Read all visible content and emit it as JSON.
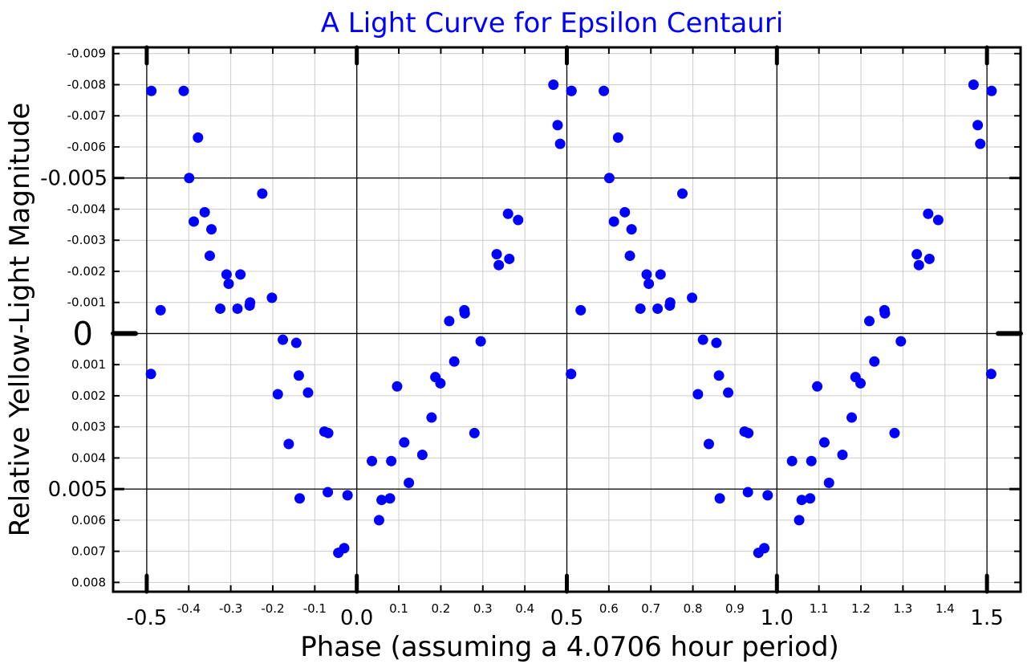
{
  "chart_data": {
    "type": "scatter",
    "title": "A Light Curve for Epsilon Centauri",
    "xlabel": "Phase (assuming a 4.0706 hour period)",
    "ylabel": "Relative Yellow-Light Magnitude",
    "xlim": [
      -0.58,
      1.58
    ],
    "ylim": [
      0.0083,
      -0.0092
    ],
    "y_inverted": true,
    "grid": true,
    "marker_color": "#0000ff",
    "title_color": "#0000ff",
    "x_ticks_minor": [
      {
        "v": -0.4,
        "label": "-0.4"
      },
      {
        "v": -0.3,
        "label": "-0.3"
      },
      {
        "v": -0.2,
        "label": "-0.2"
      },
      {
        "v": -0.1,
        "label": "-0.1"
      },
      {
        "v": 0.1,
        "label": "0.1"
      },
      {
        "v": 0.2,
        "label": "0.2"
      },
      {
        "v": 0.3,
        "label": "0.3"
      },
      {
        "v": 0.4,
        "label": "0.4"
      },
      {
        "v": 0.6,
        "label": "0.6"
      },
      {
        "v": 0.7,
        "label": "0.7"
      },
      {
        "v": 0.8,
        "label": "0.8"
      },
      {
        "v": 0.9,
        "label": "0.9"
      },
      {
        "v": 1.1,
        "label": "1.1"
      },
      {
        "v": 1.2,
        "label": "1.2"
      },
      {
        "v": 1.3,
        "label": "1.3"
      },
      {
        "v": 1.4,
        "label": "1.4"
      }
    ],
    "x_ticks_major": [
      {
        "v": -0.5,
        "label": "-0.5"
      },
      {
        "v": 0.0,
        "label": "0.0"
      },
      {
        "v": 0.5,
        "label": "0.5"
      },
      {
        "v": 1.0,
        "label": "1.0"
      },
      {
        "v": 1.5,
        "label": "1.5"
      }
    ],
    "y_ticks_minor": [
      {
        "v": -0.009,
        "label": "-0.009"
      },
      {
        "v": -0.008,
        "label": "-0.008"
      },
      {
        "v": -0.007,
        "label": "-0.007"
      },
      {
        "v": -0.006,
        "label": "-0.006"
      },
      {
        "v": -0.004,
        "label": "-0.004"
      },
      {
        "v": -0.003,
        "label": "-0.003"
      },
      {
        "v": -0.002,
        "label": "-0.002"
      },
      {
        "v": -0.001,
        "label": "-0.001"
      },
      {
        "v": 0.001,
        "label": "0.001"
      },
      {
        "v": 0.002,
        "label": "0.002"
      },
      {
        "v": 0.003,
        "label": "0.003"
      },
      {
        "v": 0.004,
        "label": "0.004"
      },
      {
        "v": 0.006,
        "label": "0.006"
      },
      {
        "v": 0.007,
        "label": "0.007"
      },
      {
        "v": 0.008,
        "label": "0.008"
      }
    ],
    "y_ticks_major": [
      {
        "v": -0.005,
        "label": "-0.005"
      },
      {
        "v": 0.005,
        "label": "0.005"
      }
    ],
    "y_tick_zero": {
      "v": 0,
      "label": "0"
    },
    "points": [
      [
        -0.49,
        0.0013
      ],
      [
        -0.489,
        -0.0078
      ],
      [
        -0.467,
        -0.00075
      ],
      [
        -0.412,
        -0.0078
      ],
      [
        -0.399,
        -0.005
      ],
      [
        -0.388,
        -0.0036
      ],
      [
        -0.378,
        -0.0063
      ],
      [
        -0.362,
        -0.0039
      ],
      [
        -0.346,
        -0.00335
      ],
      [
        -0.35,
        -0.0025
      ],
      [
        -0.325,
        -0.0008
      ],
      [
        -0.31,
        -0.0019
      ],
      [
        -0.305,
        -0.0016
      ],
      [
        -0.284,
        -0.0008
      ],
      [
        -0.277,
        -0.0019
      ],
      [
        -0.255,
        -0.0009
      ],
      [
        -0.254,
        -0.001
      ],
      [
        -0.225,
        -0.0045
      ],
      [
        -0.202,
        -0.00115
      ],
      [
        -0.188,
        0.00195
      ],
      [
        -0.176,
        0.0002
      ],
      [
        -0.162,
        0.00355
      ],
      [
        -0.144,
        0.0003
      ],
      [
        -0.138,
        0.00135
      ],
      [
        -0.136,
        0.0053
      ],
      [
        -0.116,
        0.0019
      ],
      [
        -0.077,
        0.00315
      ],
      [
        -0.068,
        0.0032
      ],
      [
        -0.069,
        0.0051
      ],
      [
        -0.044,
        0.00705
      ],
      [
        -0.03,
        0.0069
      ],
      [
        -0.022,
        0.0052
      ],
      [
        0.036,
        0.0041
      ],
      [
        0.053,
        0.006
      ],
      [
        0.059,
        0.00535
      ],
      [
        0.079,
        0.0053
      ],
      [
        0.082,
        0.0041
      ],
      [
        0.096,
        0.0017
      ],
      [
        0.113,
        0.0035
      ],
      [
        0.124,
        0.0048
      ],
      [
        0.156,
        0.0039
      ],
      [
        0.178,
        0.0027
      ],
      [
        0.187,
        0.0014
      ],
      [
        0.199,
        0.0016
      ],
      [
        0.22,
        -0.0004
      ],
      [
        0.232,
        0.0009
      ],
      [
        0.256,
        -0.00075
      ],
      [
        0.257,
        -0.00065
      ],
      [
        0.28,
        0.0032
      ],
      [
        0.295,
        0.00025
      ],
      [
        0.333,
        -0.00255
      ],
      [
        0.338,
        -0.0022
      ],
      [
        0.36,
        -0.00385
      ],
      [
        0.363,
        -0.0024
      ],
      [
        0.384,
        -0.00365
      ],
      [
        0.468,
        -0.008
      ],
      [
        0.478,
        -0.0067
      ],
      [
        0.484,
        -0.0061
      ],
      [
        0.51,
        0.0013
      ],
      [
        0.511,
        -0.0078
      ]
    ]
  }
}
